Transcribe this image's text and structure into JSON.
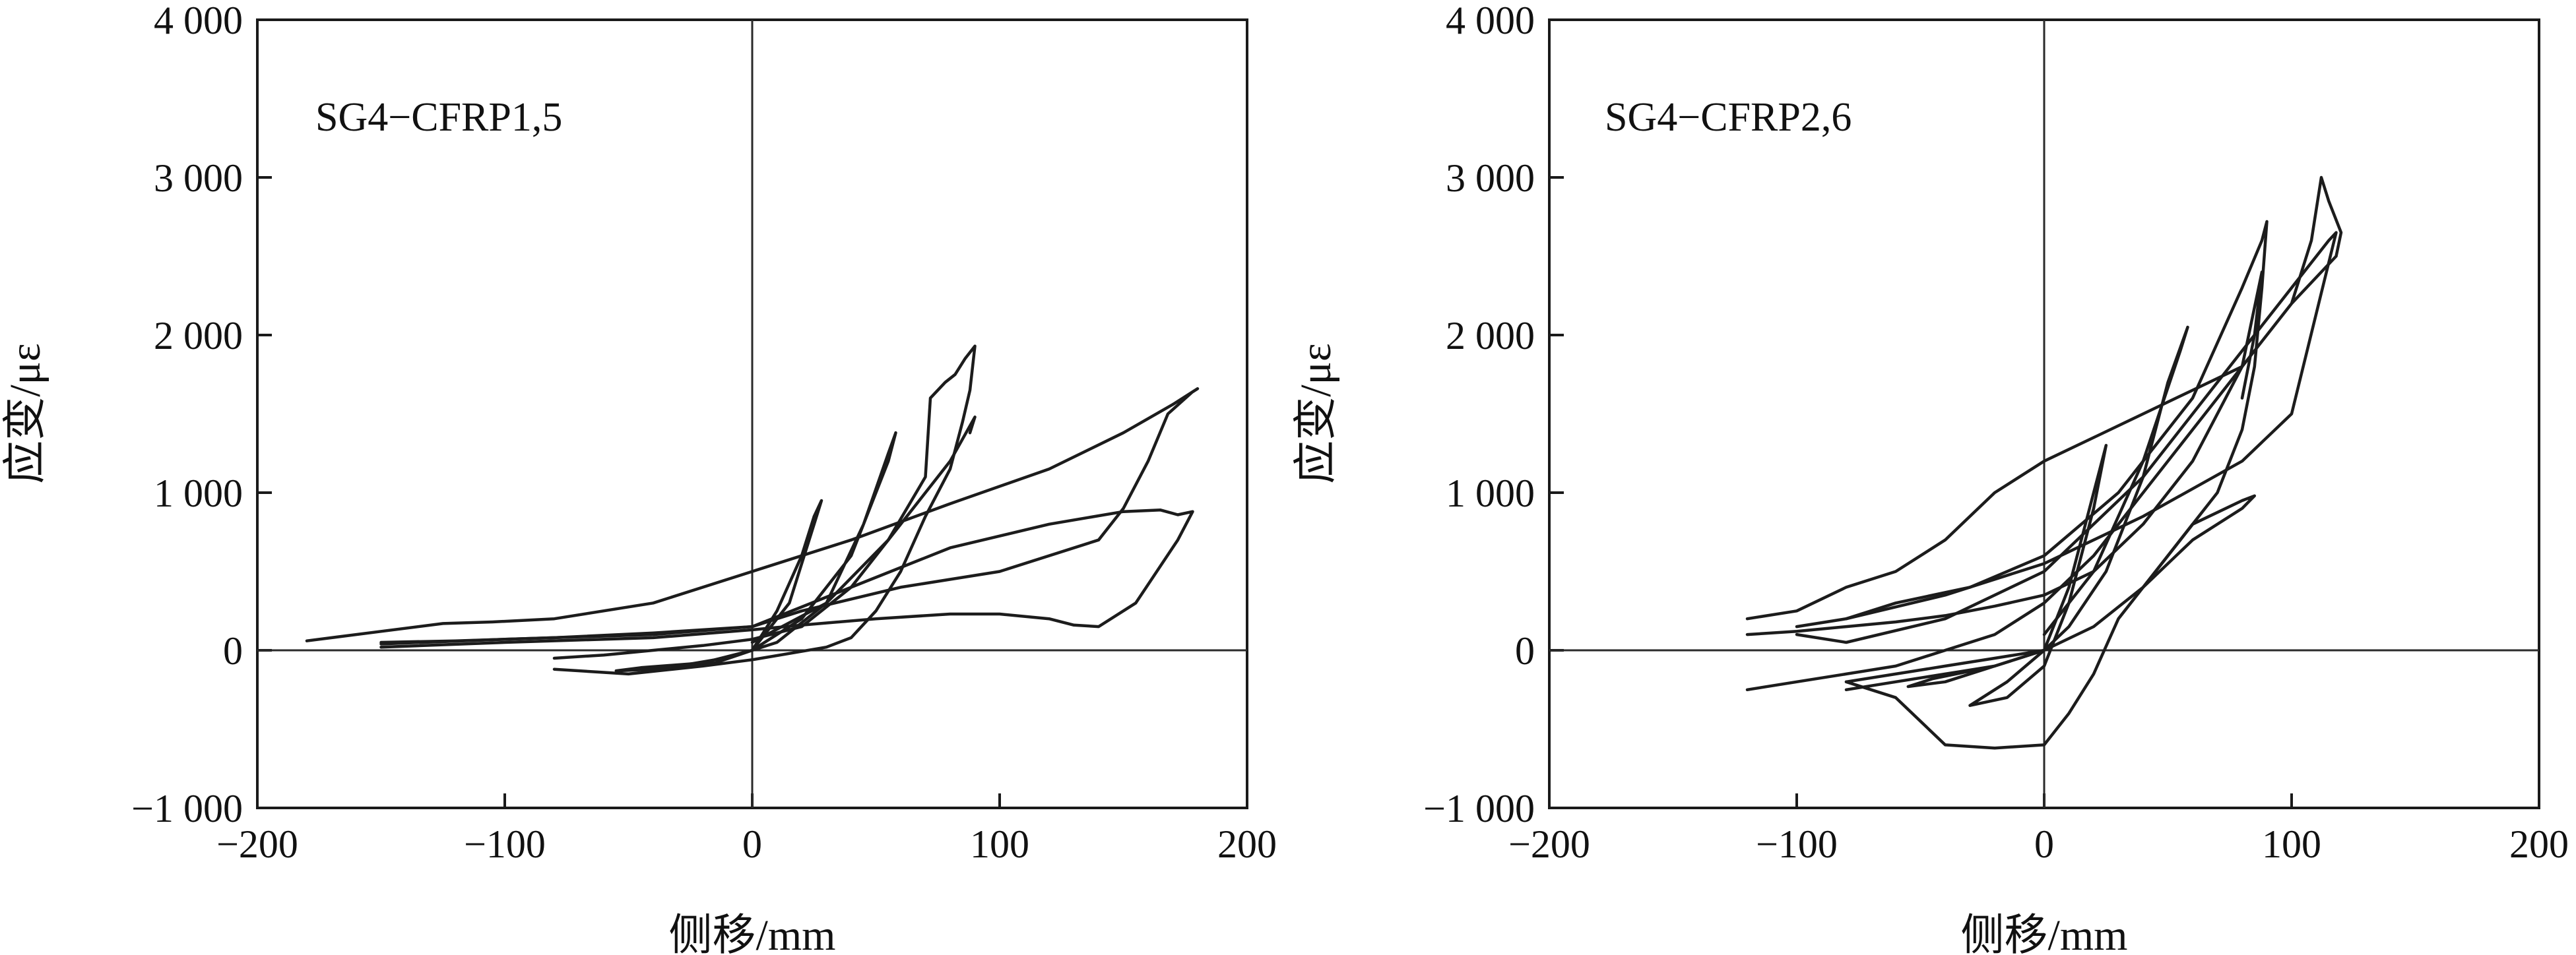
{
  "chart_data": [
    {
      "type": "line",
      "annotation": "SG4−CFRP1,5",
      "xlabel": "侧移/mm",
      "ylabel": "应变/με",
      "xlim": [
        -200,
        200
      ],
      "ylim": [
        -1000,
        4000
      ],
      "xticks": [
        -200,
        -100,
        0,
        100,
        200
      ],
      "xtick_labels": [
        "−200",
        "−100",
        "0",
        "100",
        "200"
      ],
      "yticks": [
        -1000,
        0,
        1000,
        2000,
        3000,
        4000
      ],
      "ytick_labels": [
        "−1 000",
        "0",
        "1 000",
        "2 000",
        "3 000",
        "4 000"
      ],
      "grid": false,
      "reference_lines": {
        "x": 0,
        "y": 0
      },
      "series": [
        {
          "x": [
            0,
            10,
            20,
            25,
            28,
            25,
            15,
            0,
            -15,
            -30,
            -15,
            0
          ],
          "y": [
            0,
            250,
            600,
            850,
            950,
            800,
            300,
            0,
            -80,
            -100,
            -60,
            0
          ]
        },
        {
          "x": [
            0,
            20,
            40,
            55,
            58,
            55,
            45,
            30,
            10,
            0,
            -20,
            -40,
            -55,
            -45,
            -20,
            0
          ],
          "y": [
            0,
            200,
            600,
            1200,
            1380,
            1250,
            800,
            300,
            50,
            0,
            -80,
            -120,
            -130,
            -110,
            -80,
            0
          ]
        },
        {
          "x": [
            0,
            30,
            55,
            70,
            72,
            78,
            82,
            86,
            90,
            88,
            85,
            80,
            70,
            60,
            50,
            40,
            30,
            15,
            0,
            -20,
            -50,
            -80
          ],
          "y": [
            50,
            300,
            700,
            1100,
            1600,
            1700,
            1750,
            1850,
            1930,
            1650,
            1450,
            1150,
            850,
            500,
            250,
            80,
            20,
            -20,
            -60,
            -100,
            -150,
            -120
          ]
        },
        {
          "x": [
            -80,
            -60,
            -40,
            -20,
            0,
            20,
            40,
            60,
            80,
            90,
            88
          ],
          "y": [
            -50,
            -30,
            0,
            30,
            70,
            150,
            400,
            800,
            1200,
            1480,
            1380
          ]
        },
        {
          "x": [
            -180,
            -150,
            -125,
            -105,
            -80,
            -40,
            0,
            40,
            80,
            120,
            150,
            170,
            180,
            178,
            168,
            160,
            150,
            140,
            100,
            60,
            20,
            0,
            -40,
            -100,
            -150
          ],
          "y": [
            60,
            120,
            170,
            180,
            200,
            300,
            500,
            700,
            930,
            1150,
            1380,
            1560,
            1660,
            1640,
            1500,
            1200,
            900,
            700,
            500,
            400,
            250,
            150,
            100,
            70,
            40
          ]
        },
        {
          "x": [
            -150,
            -120,
            -80,
            -40,
            0,
            40,
            80,
            120,
            150,
            165,
            172,
            178,
            172,
            155,
            140,
            130,
            120,
            100,
            80,
            50,
            20,
            0,
            -40,
            -100,
            -150
          ],
          "y": [
            50,
            60,
            80,
            110,
            150,
            400,
            650,
            800,
            880,
            890,
            860,
            880,
            700,
            300,
            150,
            160,
            200,
            230,
            230,
            200,
            160,
            130,
            80,
            50,
            20
          ]
        }
      ]
    },
    {
      "type": "line",
      "annotation": "SG4−CFRP2,6",
      "xlabel": "侧移/mm",
      "ylabel": "应变/με",
      "xlim": [
        -200,
        200
      ],
      "ylim": [
        -1000,
        4000
      ],
      "xticks": [
        -200,
        -100,
        0,
        100,
        200
      ],
      "xtick_labels": [
        "−200",
        "−100",
        "0",
        "100",
        "200"
      ],
      "yticks": [
        -1000,
        0,
        1000,
        2000,
        3000,
        4000
      ],
      "ytick_labels": [
        "−1 000",
        "0",
        "1 000",
        "2 000",
        "3 000",
        "4 000"
      ],
      "grid": false,
      "reference_lines": {
        "x": 0,
        "y": 0
      },
      "series": [
        {
          "x": [
            0,
            10,
            20,
            25,
            20,
            10,
            0,
            -15,
            -30,
            -15,
            0
          ],
          "y": [
            0,
            400,
            1000,
            1300,
            900,
            300,
            -100,
            -300,
            -350,
            -200,
            0
          ]
        },
        {
          "x": [
            0,
            20,
            40,
            55,
            58,
            50,
            40,
            25,
            10,
            0,
            -20,
            -40,
            -55,
            -45,
            -20,
            0
          ],
          "y": [
            100,
            500,
            1200,
            1900,
            2050,
            1700,
            1100,
            500,
            150,
            0,
            -100,
            -200,
            -230,
            -180,
            -100,
            0
          ]
        },
        {
          "x": [
            -80,
            -60,
            -30,
            0,
            30,
            60,
            80,
            88,
            90,
            88,
            85,
            80,
            70,
            50,
            30,
            20,
            10,
            0,
            -20,
            -40,
            -60,
            -80
          ],
          "y": [
            200,
            300,
            400,
            600,
            1000,
            1600,
            2300,
            2600,
            2720,
            2300,
            1800,
            1400,
            1000,
            600,
            200,
            -150,
            -400,
            -600,
            -620,
            -600,
            -300,
            -200
          ]
        },
        {
          "x": [
            -120,
            -100,
            -80,
            -60,
            -40,
            -20,
            0,
            20,
            40,
            60,
            80,
            88,
            85,
            80
          ],
          "y": [
            100,
            120,
            150,
            180,
            220,
            280,
            350,
            500,
            800,
            1200,
            1800,
            2400,
            2000,
            1600
          ]
        },
        {
          "x": [
            -120,
            -100,
            -80,
            -60,
            -40,
            -20,
            0,
            20,
            40,
            60,
            80,
            100,
            108,
            112,
            115,
            120,
            118,
            100,
            80,
            60,
            40,
            20,
            0,
            -20,
            -40,
            -60,
            -80,
            -100,
            -120
          ],
          "y": [
            200,
            250,
            400,
            500,
            700,
            1000,
            1200,
            1350,
            1500,
            1650,
            1800,
            2200,
            2600,
            3000,
            2850,
            2650,
            2500,
            2200,
            1800,
            1400,
            1000,
            600,
            300,
            100,
            0,
            -100,
            -150,
            -200,
            -250
          ]
        },
        {
          "x": [
            -100,
            -80,
            -40,
            0,
            40,
            80,
            100,
            118,
            115,
            100,
            80,
            60,
            40,
            20,
            0,
            -40,
            -80,
            -100
          ],
          "y": [
            150,
            200,
            350,
            550,
            850,
            1200,
            1500,
            2650,
            2600,
            2300,
            1900,
            1500,
            1100,
            800,
            500,
            200,
            50,
            100
          ]
        },
        {
          "x": [
            -80,
            -60,
            -40,
            -20,
            0,
            20,
            40,
            60,
            80,
            85,
            80,
            60,
            40,
            20,
            0,
            -20,
            -40,
            -60,
            -80
          ],
          "y": [
            -200,
            -150,
            -100,
            -50,
            0,
            150,
            400,
            800,
            950,
            980,
            900,
            700,
            400,
            150,
            0,
            -100,
            -150,
            -200,
            -250
          ]
        }
      ]
    }
  ]
}
